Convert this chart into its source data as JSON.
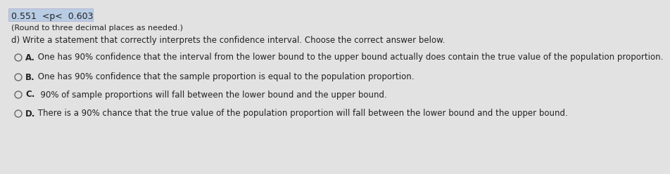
{
  "background_color": "#e2e2e2",
  "line1": "0.551  <p<  0.603",
  "line2": "(Round to three decimal places as needed.)",
  "line3": "d) Write a statement that correctly interprets the confidence interval. Choose the correct answer below.",
  "options": [
    {
      "label": "A.",
      "text": " One has 90% confidence that the interval from the lower bound to the upper bound actually does contain the true value of the population proportion."
    },
    {
      "label": "B.",
      "text": " One has 90% confidence that the sample proportion is equal to the population proportion."
    },
    {
      "label": "C.",
      "text": "  90% of sample proportions will fall between the lower bound and the upper bound."
    },
    {
      "label": "D.",
      "text": " There is a 90% chance that the true value of the population proportion will fall between the lower bound and the upper bound."
    }
  ],
  "highlight_color": "#b8cce4",
  "text_color": "#222222",
  "circle_color": "#666666",
  "font_size": 8.5
}
